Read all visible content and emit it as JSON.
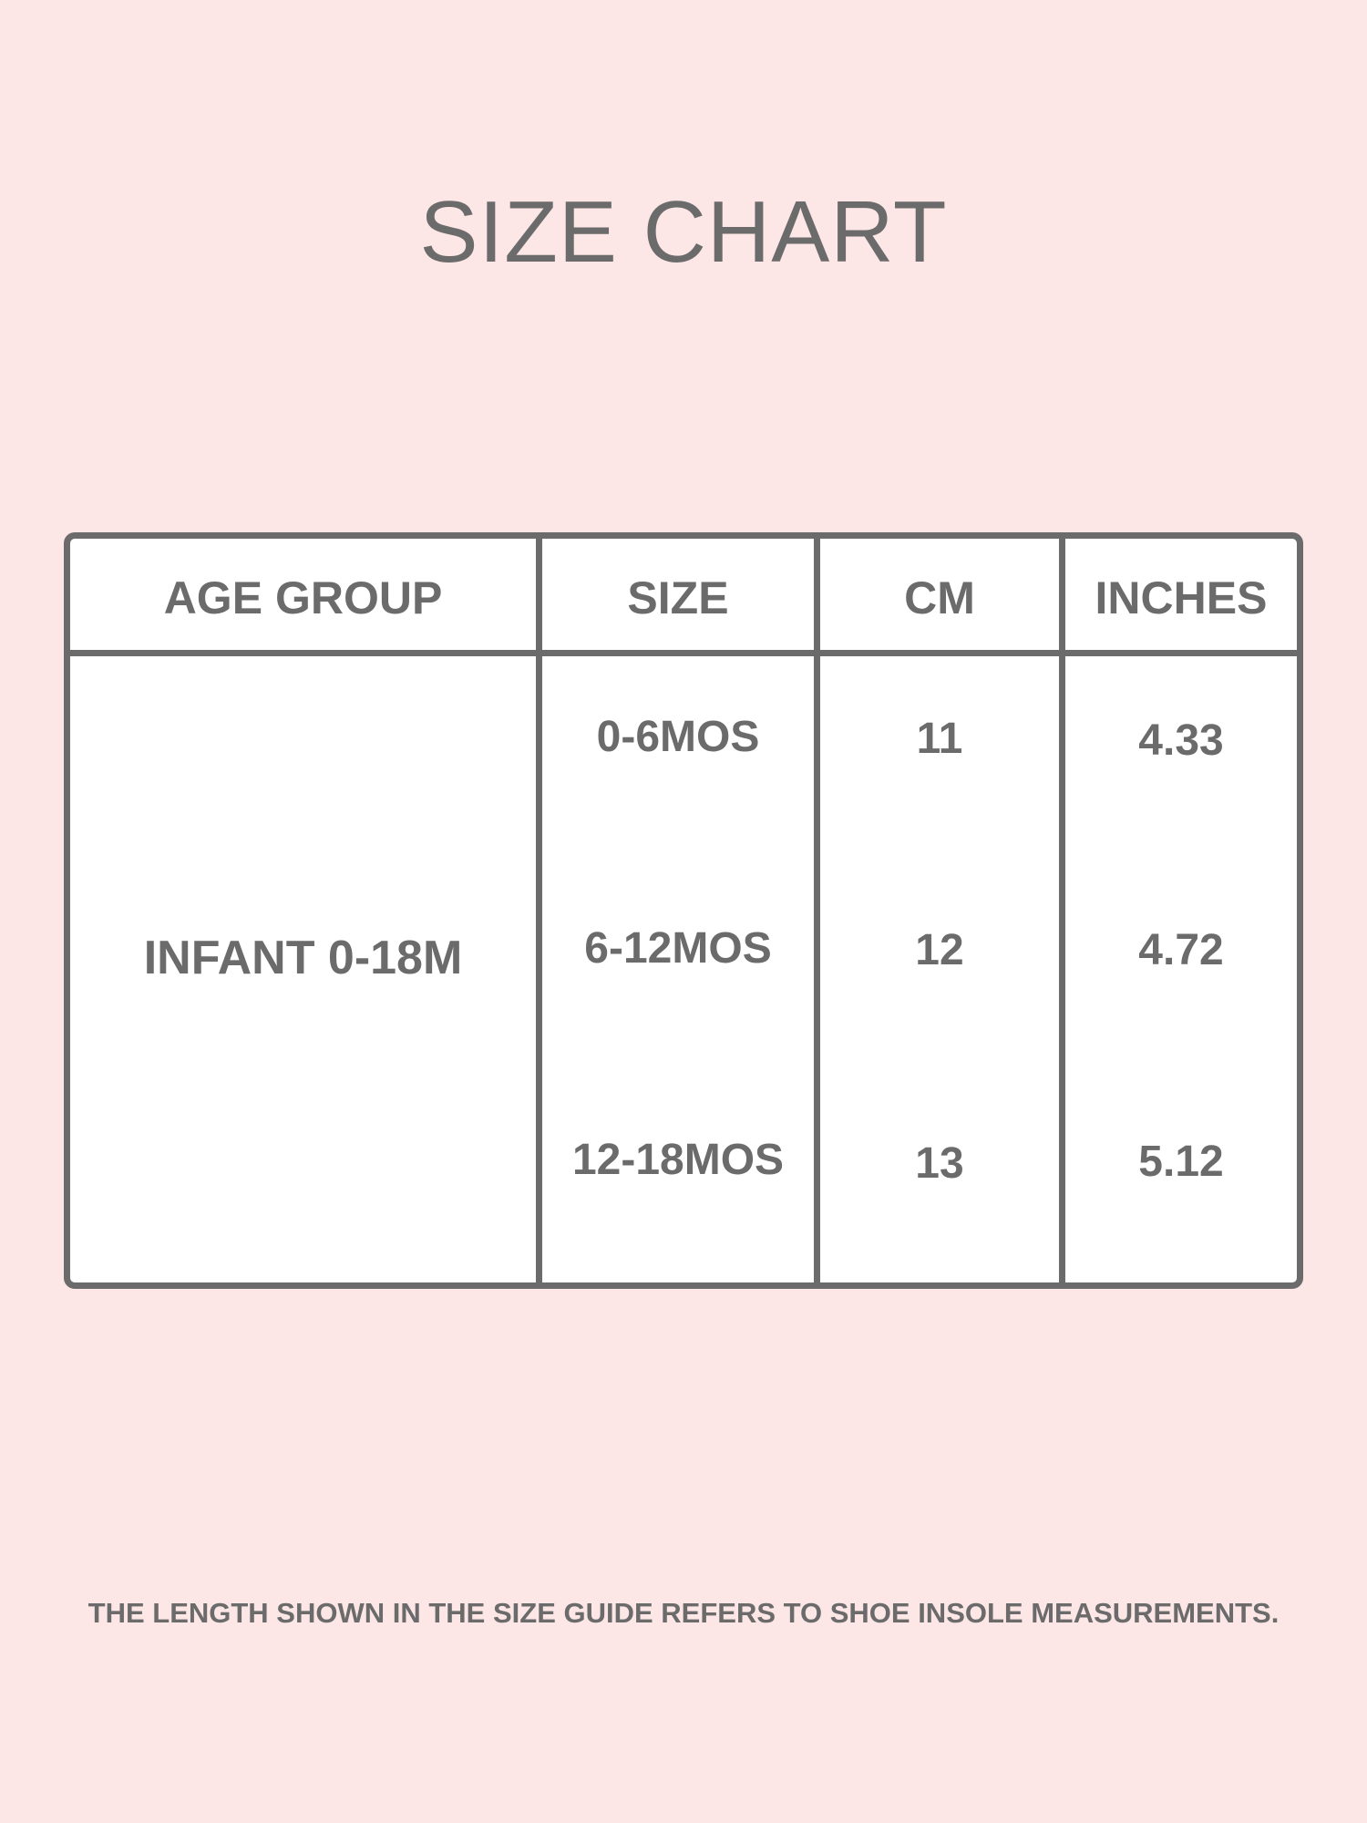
{
  "title": "SIZE CHART",
  "table": {
    "headers": [
      "AGE GROUP",
      "SIZE",
      "CM",
      "INCHES"
    ],
    "age_group": "INFANT 0-18M",
    "rows": [
      {
        "size": "0-6MOS",
        "cm": "11",
        "inches": "4.33"
      },
      {
        "size": "6-12MOS",
        "cm": "12",
        "inches": "4.72"
      },
      {
        "size": "12-18MOS",
        "cm": "13",
        "inches": "5.12"
      }
    ]
  },
  "footer": "THE LENGTH SHOWN IN THE SIZE GUIDE REFERS TO SHOE INSOLE MEASUREMENTS.",
  "colors": {
    "background": "#fde6e6",
    "text": "#6b6b6b",
    "table_bg": "#ffffff"
  }
}
